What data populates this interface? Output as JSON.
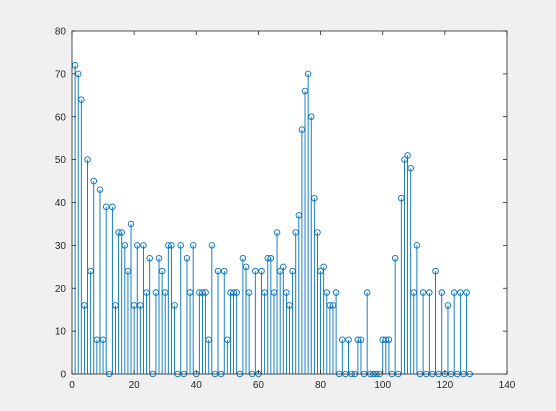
{
  "chart_data": {
    "type": "stem",
    "title": "",
    "xlabel": "",
    "ylabel": "",
    "xlim": [
      0,
      140
    ],
    "ylim": [
      0,
      80
    ],
    "xticks": [
      0,
      20,
      40,
      60,
      80,
      100,
      120,
      140
    ],
    "yticks": [
      0,
      10,
      20,
      30,
      40,
      50,
      60,
      70,
      80
    ],
    "grid": false,
    "legend": "none",
    "colors": {
      "stem": "#0072bd",
      "axes": "#262626",
      "plot_background": "#ffffff",
      "figure_background": "#f0f0f0"
    },
    "series": [
      {
        "x": [
          1,
          2,
          3,
          4,
          5,
          6,
          7,
          8,
          9,
          10,
          11,
          12,
          13,
          14,
          15,
          16,
          17,
          18,
          19,
          20,
          21,
          22,
          23,
          24,
          25,
          26,
          27,
          28,
          29,
          30,
          31,
          32,
          33,
          34,
          35,
          36,
          37,
          38,
          39,
          40,
          41,
          42,
          43,
          44,
          45,
          46,
          47,
          48,
          49,
          50,
          51,
          52,
          53,
          54,
          55,
          56,
          57,
          58,
          59,
          60,
          61,
          62,
          63,
          64,
          65,
          66,
          67,
          68,
          69,
          70,
          71,
          72,
          73,
          74,
          75,
          76,
          77,
          78,
          79,
          80,
          81,
          82,
          83,
          84,
          85,
          86,
          87,
          88,
          89,
          90,
          91,
          92,
          93,
          94,
          95,
          96,
          97,
          98,
          99,
          100,
          101,
          102,
          103,
          104,
          105,
          106,
          107,
          108,
          109,
          110,
          111,
          112,
          113,
          114,
          115,
          116,
          117,
          118,
          119,
          120,
          121,
          122,
          123,
          124,
          125,
          126,
          127,
          128
        ],
        "values": [
          72,
          70,
          64,
          16,
          50,
          24,
          45,
          8,
          43,
          8,
          39,
          0,
          39,
          16,
          33,
          33,
          30,
          24,
          35,
          16,
          30,
          16,
          30,
          19,
          27,
          0,
          19,
          27,
          24,
          19,
          30,
          30,
          16,
          0,
          30,
          0,
          27,
          19,
          30,
          0,
          19,
          19,
          19,
          8,
          30,
          0,
          24,
          0,
          24,
          8,
          19,
          19,
          19,
          0,
          27,
          25,
          19,
          0,
          24,
          0,
          24,
          19,
          27,
          27,
          19,
          33,
          24,
          25,
          19,
          16,
          24,
          33,
          37,
          57,
          66,
          70,
          60,
          41,
          33,
          24,
          25,
          19,
          16,
          16,
          19,
          0,
          8,
          0,
          8,
          0,
          0,
          8,
          8,
          0,
          19,
          0,
          0,
          0,
          0,
          8,
          8,
          8,
          0,
          27,
          0,
          41,
          50,
          51,
          48,
          19,
          30,
          0,
          19,
          0,
          19,
          0,
          24,
          0,
          19,
          0,
          16,
          0,
          19,
          0,
          19,
          0,
          19,
          0
        ]
      }
    ]
  }
}
